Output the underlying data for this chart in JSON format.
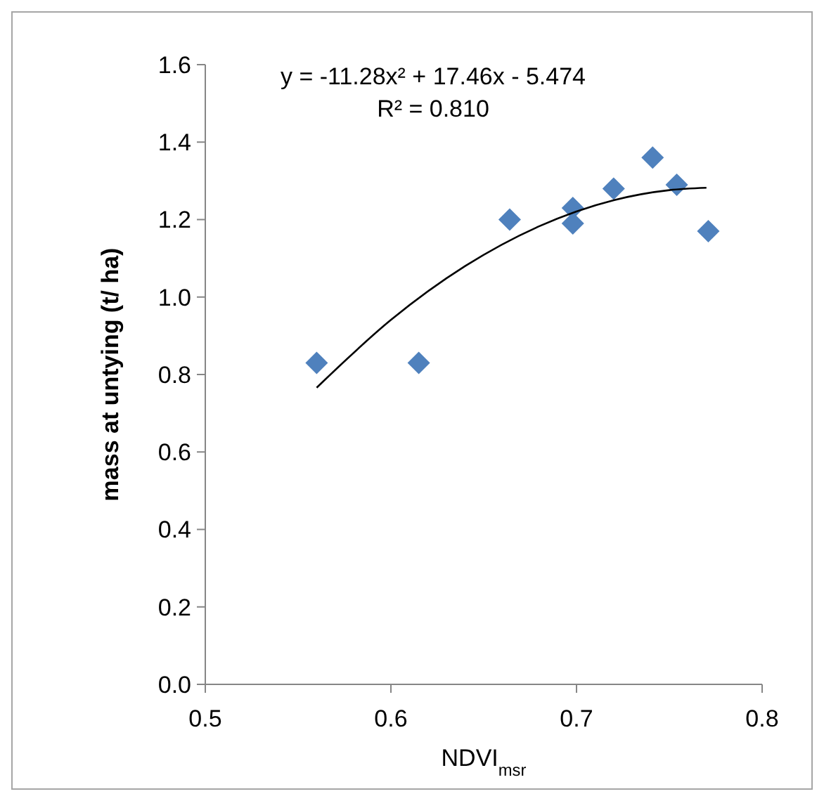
{
  "chart_data": {
    "type": "scatter",
    "xlabel": "NDVI$_{msr}$",
    "ylabel": "mass at untying (t/ ha)",
    "annotations": [
      "y = -11.28x² + 17.46x - 5.474",
      "R² = 0.810"
    ],
    "xlim": [
      0.5,
      0.8
    ],
    "xticks": [
      0.5,
      0.6,
      0.7,
      0.8
    ],
    "ylim": [
      0,
      1.6
    ],
    "yticks": [
      {
        "value": 0,
        "label": "0.0"
      },
      0.2,
      0.4,
      0.6,
      0.8,
      {
        "value": 1,
        "label": "1.0"
      },
      1.2,
      1.4,
      1.6
    ],
    "grid": false,
    "marker": "diamond",
    "series": [
      {
        "color": "#4f81bd",
        "x": [
          0.56,
          0.615,
          0.664,
          0.698,
          0.698,
          0.72,
          0.741,
          0.754,
          0.771
        ],
        "values": [
          0.83,
          0.83,
          1.2,
          1.23,
          1.19,
          1.28,
          1.36,
          1.29,
          1.17
        ]
      },
      {
        "type": "line",
        "color": "#000000",
        "marker": "none",
        "line_style": "solid",
        "x": [
          0.56,
          0.6,
          0.64,
          0.68,
          0.72,
          0.75,
          0.77
        ],
        "values": [
          0.766,
          0.941,
          1.08,
          1.183,
          1.25,
          1.276,
          1.282
        ]
      }
    ]
  }
}
